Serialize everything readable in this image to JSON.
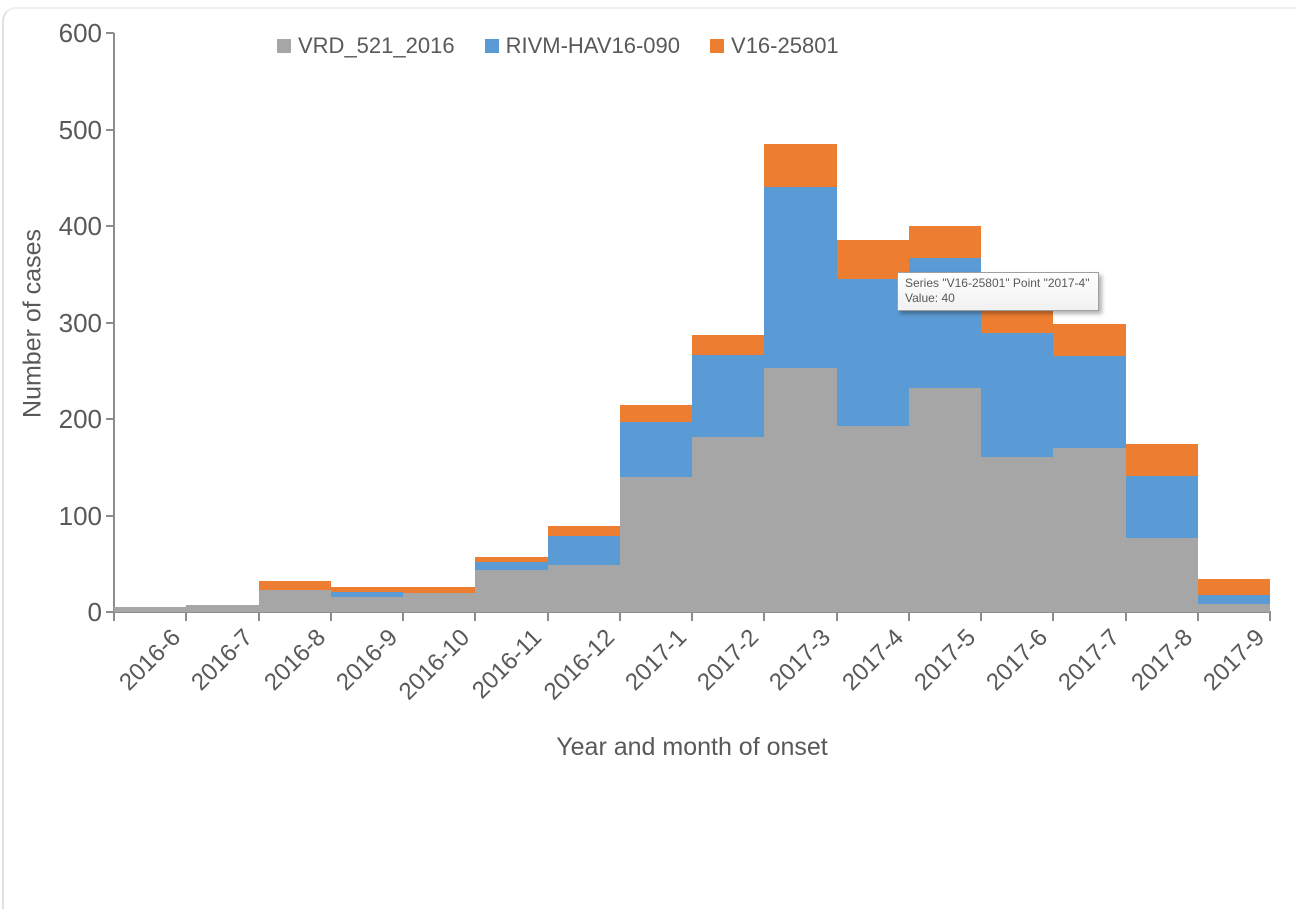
{
  "chart_data": {
    "type": "bar",
    "stacked": true,
    "title": "",
    "xlabel": "Year and month of onset",
    "ylabel": "Number of cases",
    "ylim": [
      0,
      600
    ],
    "yticks": [
      0,
      100,
      200,
      300,
      400,
      500,
      600
    ],
    "grid": false,
    "legend_position": "top",
    "categories": [
      "2016-6",
      "2016-7",
      "2016-8",
      "2016-9",
      "2016-10",
      "2016-11",
      "2016-12",
      "2017-1",
      "2017-2",
      "2017-3",
      "2017-4",
      "2017-5",
      "2017-6",
      "2017-7",
      "2017-8",
      "2017-9"
    ],
    "series": [
      {
        "name": "VRD_521_2016",
        "color": "#a6a6a6",
        "values": [
          5,
          7,
          23,
          16,
          20,
          44,
          49,
          140,
          181,
          253,
          193,
          232,
          161,
          170,
          77,
          8
        ]
      },
      {
        "name": "RIVM-HAV16-090",
        "color": "#5b9bd5",
        "values": [
          0,
          0,
          0,
          5,
          0,
          8,
          30,
          57,
          85,
          187,
          152,
          135,
          128,
          95,
          64,
          10
        ]
      },
      {
        "name": "V16-25801",
        "color": "#ed7d31",
        "values": [
          0,
          0,
          9,
          5,
          6,
          5,
          10,
          18,
          21,
          45,
          40,
          33,
          30,
          33,
          33,
          16
        ]
      }
    ]
  },
  "tooltip": {
    "line1": "Series \"V16-25801\" Point \"2017-4\"",
    "line2": "Value: 40",
    "series": "V16-25801",
    "point": "2017-4",
    "value": 40
  },
  "colors": {
    "axis_line": "#8c8c8c",
    "text": "#595959",
    "series_gray": "#a6a6a6",
    "series_blue": "#5b9bd5",
    "series_orange": "#ed7d31"
  }
}
